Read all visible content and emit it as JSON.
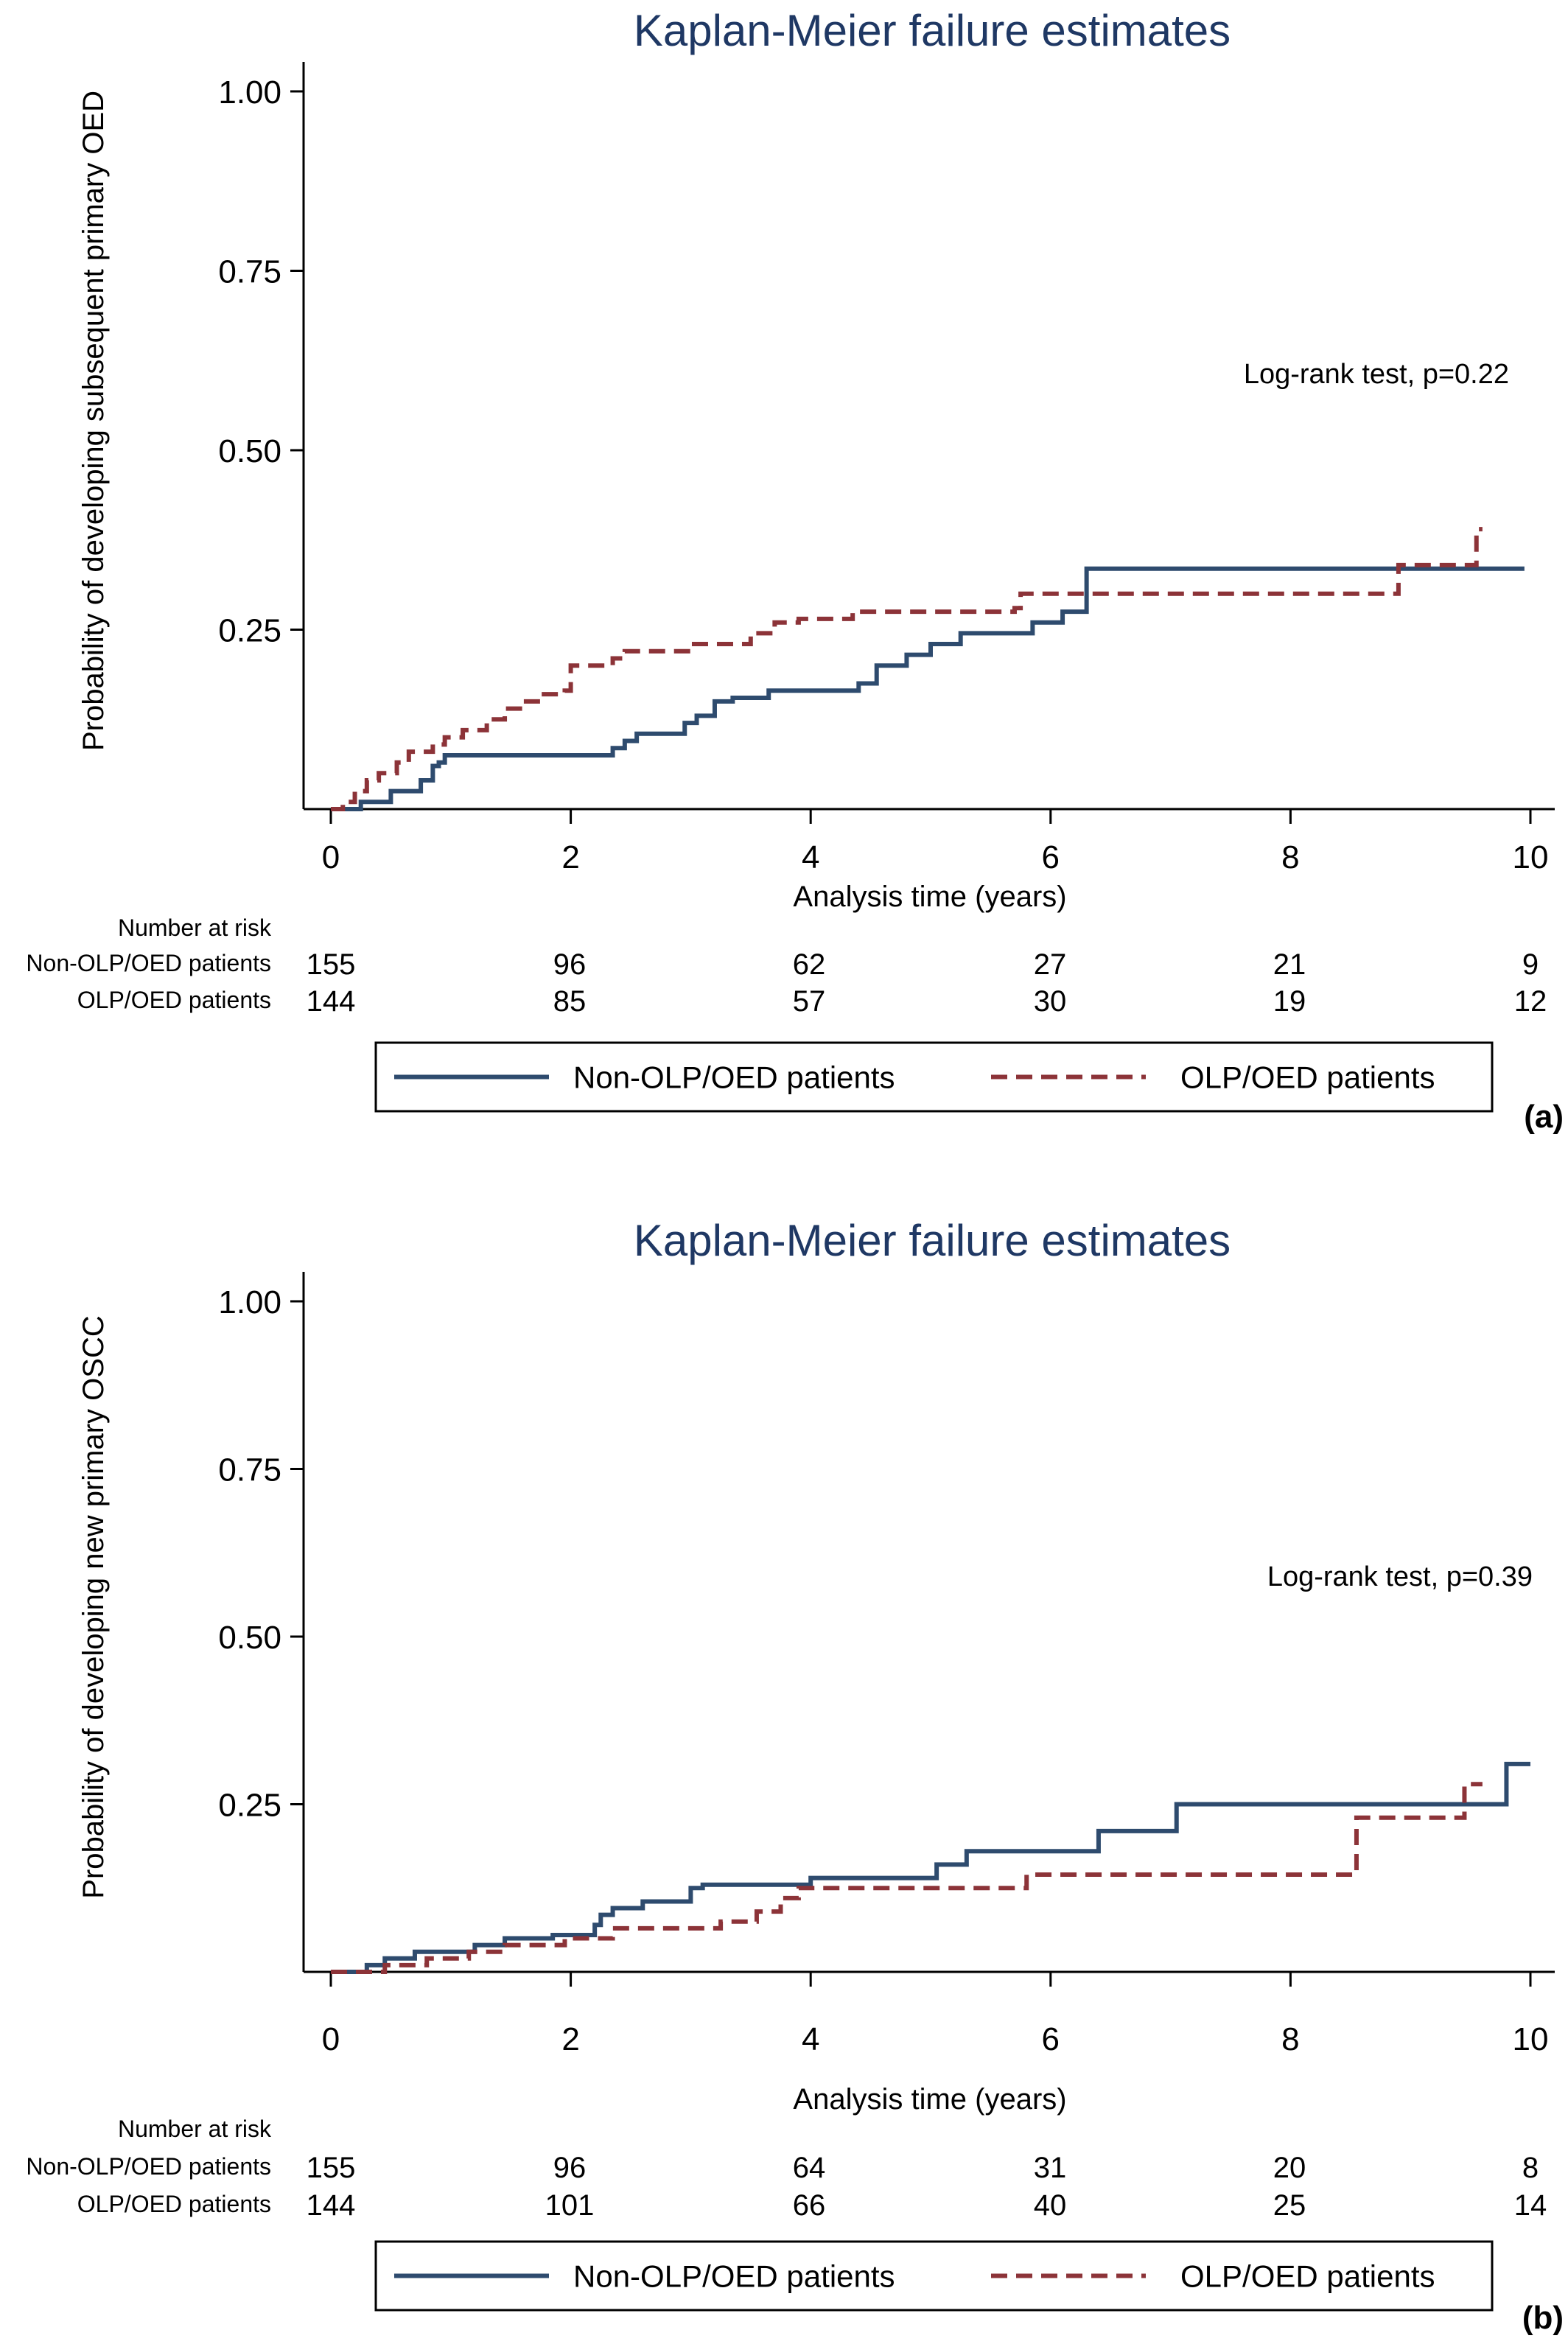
{
  "chart_data": [
    {
      "type": "line",
      "panel_label": "(a)",
      "title": "Kaplan-Meier failure estimates",
      "xlabel": "Analysis time (years)",
      "ylabel": "Probability of developing subsequent primary OED",
      "xlim": [
        0,
        10
      ],
      "ylim": [
        0,
        1.0
      ],
      "xticks": [
        "0",
        "2",
        "4",
        "6",
        "8",
        "10"
      ],
      "yticks": [
        "0.25",
        "0.50",
        "0.75",
        "1.00"
      ],
      "annotation": "Log-rank test, p=0.22",
      "series": [
        {
          "name": "Non-OLP/OED patients",
          "color": "#2e4b6e",
          "style": "solid",
          "steps": [
            [
              0,
              0
            ],
            [
              0.25,
              0.01
            ],
            [
              0.5,
              0.025
            ],
            [
              0.75,
              0.04
            ],
            [
              0.85,
              0.06
            ],
            [
              0.9,
              0.065
            ],
            [
              0.95,
              0.075
            ],
            [
              1.2,
              0.075
            ],
            [
              2.35,
              0.085
            ],
            [
              2.45,
              0.095
            ],
            [
              2.55,
              0.105
            ],
            [
              2.95,
              0.12
            ],
            [
              3.05,
              0.13
            ],
            [
              3.2,
              0.15
            ],
            [
              3.35,
              0.155
            ],
            [
              3.65,
              0.165
            ],
            [
              4.4,
              0.175
            ],
            [
              4.55,
              0.2
            ],
            [
              4.8,
              0.215
            ],
            [
              5.0,
              0.23
            ],
            [
              5.25,
              0.245
            ],
            [
              5.85,
              0.26
            ],
            [
              6.1,
              0.275
            ],
            [
              6.3,
              0.335
            ],
            [
              9.95,
              0.335
            ]
          ]
        },
        {
          "name": "OLP/OED patients",
          "color": "#8c3338",
          "style": "dashed",
          "steps": [
            [
              0,
              0
            ],
            [
              0.1,
              0.01
            ],
            [
              0.2,
              0.025
            ],
            [
              0.3,
              0.04
            ],
            [
              0.4,
              0.05
            ],
            [
              0.55,
              0.065
            ],
            [
              0.65,
              0.08
            ],
            [
              0.85,
              0.09
            ],
            [
              0.95,
              0.1
            ],
            [
              1.1,
              0.11
            ],
            [
              1.3,
              0.125
            ],
            [
              1.45,
              0.14
            ],
            [
              1.6,
              0.15
            ],
            [
              1.75,
              0.16
            ],
            [
              1.95,
              0.165
            ],
            [
              2.0,
              0.2
            ],
            [
              2.35,
              0.21
            ],
            [
              2.45,
              0.22
            ],
            [
              3.0,
              0.23
            ],
            [
              3.5,
              0.245
            ],
            [
              3.7,
              0.26
            ],
            [
              3.9,
              0.265
            ],
            [
              4.35,
              0.275
            ],
            [
              5.7,
              0.28
            ],
            [
              5.75,
              0.3
            ],
            [
              8.9,
              0.34
            ],
            [
              9.55,
              0.39
            ],
            [
              9.6,
              0.39
            ]
          ]
        }
      ],
      "risk_table": {
        "header": "Number at risk",
        "rows": [
          {
            "label": "Non-OLP/OED patients",
            "values": [
              "155",
              "96",
              "62",
              "27",
              "21",
              "9"
            ]
          },
          {
            "label": "OLP/OED patients",
            "values": [
              "144",
              "85",
              "57",
              "30",
              "19",
              "12"
            ]
          }
        ]
      },
      "legend": [
        "Non-OLP/OED patients",
        "OLP/OED patients"
      ],
      "legend_position": "bottom"
    },
    {
      "type": "line",
      "panel_label": "(b)",
      "title": "Kaplan-Meier failure estimates",
      "xlabel": "Analysis time (years)",
      "ylabel": "Probability of developing new primary OSCC",
      "xlim": [
        0,
        10
      ],
      "ylim": [
        0,
        1.0
      ],
      "xticks": [
        "0",
        "2",
        "4",
        "6",
        "8",
        "10"
      ],
      "yticks": [
        "0.25",
        "0.50",
        "0.75",
        "1.00"
      ],
      "annotation": "Log-rank test, p=0.39",
      "series": [
        {
          "name": "Non-OLP/OED patients",
          "color": "#2e4b6e",
          "style": "solid",
          "steps": [
            [
              0,
              0
            ],
            [
              0.3,
              0.01
            ],
            [
              0.45,
              0.02
            ],
            [
              0.7,
              0.03
            ],
            [
              1.2,
              0.04
            ],
            [
              1.45,
              0.05
            ],
            [
              1.85,
              0.055
            ],
            [
              2.2,
              0.07
            ],
            [
              2.25,
              0.085
            ],
            [
              2.35,
              0.095
            ],
            [
              2.6,
              0.105
            ],
            [
              3.0,
              0.125
            ],
            [
              3.1,
              0.13
            ],
            [
              4.0,
              0.14
            ],
            [
              5.05,
              0.16
            ],
            [
              5.3,
              0.18
            ],
            [
              6.4,
              0.21
            ],
            [
              7.05,
              0.25
            ],
            [
              9.8,
              0.31
            ],
            [
              10.0,
              0.31
            ]
          ]
        },
        {
          "name": "OLP/OED patients",
          "color": "#8c3338",
          "style": "dashed",
          "steps": [
            [
              0,
              0
            ],
            [
              0.45,
              0.01
            ],
            [
              0.8,
              0.02
            ],
            [
              1.15,
              0.03
            ],
            [
              1.45,
              0.04
            ],
            [
              1.95,
              0.05
            ],
            [
              2.35,
              0.065
            ],
            [
              3.25,
              0.075
            ],
            [
              3.55,
              0.09
            ],
            [
              3.75,
              0.11
            ],
            [
              3.9,
              0.125
            ],
            [
              5.8,
              0.145
            ],
            [
              8.55,
              0.23
            ],
            [
              9.45,
              0.28
            ],
            [
              9.6,
              0.28
            ]
          ]
        }
      ],
      "risk_table": {
        "header": "Number at risk",
        "rows": [
          {
            "label": "Non-OLP/OED patients",
            "values": [
              "155",
              "96",
              "64",
              "31",
              "20",
              "8"
            ]
          },
          {
            "label": "OLP/OED patients",
            "values": [
              "144",
              "101",
              "66",
              "40",
              "25",
              "14"
            ]
          }
        ]
      },
      "legend": [
        "Non-OLP/OED patients",
        "OLP/OED patients"
      ],
      "legend_position": "bottom"
    }
  ]
}
